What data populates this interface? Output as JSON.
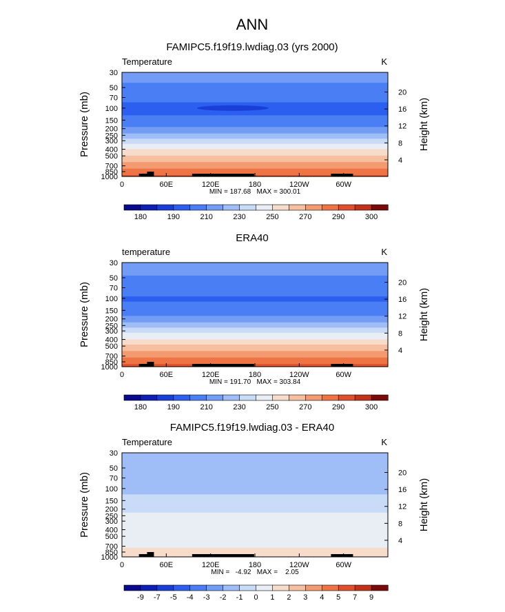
{
  "page_title": "ANN",
  "longitude_ticks": [
    "0",
    "60E",
    "120E",
    "180",
    "120W",
    "60W"
  ],
  "pressure_ticks": [
    "30",
    "50",
    "70",
    "100",
    "150",
    "200",
    "250",
    "300",
    "400",
    "500",
    "700",
    "850",
    "1000"
  ],
  "pressure_values": [
    30,
    50,
    70,
    100,
    150,
    200,
    250,
    300,
    400,
    500,
    700,
    850,
    1000
  ],
  "height_ticks": [
    "20",
    "16",
    "12",
    "8",
    "4"
  ],
  "height_values_km": [
    20,
    16,
    12,
    8,
    4
  ],
  "left_axis_label": "Pressure (mb)",
  "right_axis_label": "Height (km)",
  "terrain_color": "#000000",
  "chart_data": [
    {
      "type": "heatmap",
      "title": "FAMIPC5.f19f19.lwdiag.03 (yrs 2000)",
      "field_label": "Temperature",
      "units": "K",
      "stats": "MIN = 187.68   MAX = 300.01",
      "min": 187.68,
      "max": 300.01,
      "x_range": [
        0,
        360
      ],
      "y_range_mb": [
        30,
        1000
      ],
      "colorbar_levels": [
        180,
        185,
        190,
        200,
        210,
        220,
        230,
        240,
        250,
        260,
        270,
        280,
        290,
        295,
        300
      ],
      "colorbar_labels": [
        "180",
        "190",
        "210",
        "230",
        "250",
        "270",
        "290",
        "300"
      ],
      "colorbar_colors": [
        "#0a0a8c",
        "#0d1fb5",
        "#1a3fd9",
        "#2c5ff0",
        "#4a7ef5",
        "#739cf5",
        "#9fbdf6",
        "#c8dbf7",
        "#e8eef4",
        "#f7dccb",
        "#f6bfa0",
        "#f39a70",
        "#ee7445",
        "#e0502c",
        "#c23218",
        "#7a0a0a"
      ],
      "profile": [
        {
          "p": 30,
          "v": 214
        },
        {
          "p": 50,
          "v": 208
        },
        {
          "p": 70,
          "v": 203
        },
        {
          "p": 100,
          "v": 197
        },
        {
          "p": 150,
          "v": 202
        },
        {
          "p": 200,
          "v": 212
        },
        {
          "p": 250,
          "v": 224
        },
        {
          "p": 300,
          "v": 235
        },
        {
          "p": 400,
          "v": 250
        },
        {
          "p": 500,
          "v": 261
        },
        {
          "p": 700,
          "v": 276
        },
        {
          "p": 850,
          "v": 284
        },
        {
          "p": 1000,
          "v": 291
        }
      ],
      "cold_spot": {
        "lon": 150,
        "p": 100,
        "v": 188
      }
    },
    {
      "type": "heatmap",
      "title": "ERA40",
      "field_label": "temperature",
      "units": "K",
      "stats": "MIN = 191.70   MAX = 303.84",
      "min": 191.7,
      "max": 303.84,
      "x_range": [
        0,
        360
      ],
      "y_range_mb": [
        30,
        1000
      ],
      "colorbar_levels": [
        180,
        185,
        190,
        200,
        210,
        220,
        230,
        240,
        250,
        260,
        270,
        280,
        290,
        295,
        300
      ],
      "colorbar_labels": [
        "180",
        "190",
        "210",
        "230",
        "250",
        "270",
        "290",
        "300"
      ],
      "colorbar_colors": [
        "#0a0a8c",
        "#0d1fb5",
        "#1a3fd9",
        "#2c5ff0",
        "#4a7ef5",
        "#739cf5",
        "#9fbdf6",
        "#c8dbf7",
        "#e8eef4",
        "#f7dccb",
        "#f6bfa0",
        "#f39a70",
        "#ee7445",
        "#e0502c",
        "#c23218",
        "#7a0a0a"
      ],
      "profile": [
        {
          "p": 30,
          "v": 215
        },
        {
          "p": 50,
          "v": 209
        },
        {
          "p": 70,
          "v": 204
        },
        {
          "p": 100,
          "v": 199
        },
        {
          "p": 150,
          "v": 203
        },
        {
          "p": 200,
          "v": 213
        },
        {
          "p": 250,
          "v": 226
        },
        {
          "p": 300,
          "v": 236
        },
        {
          "p": 400,
          "v": 251
        },
        {
          "p": 500,
          "v": 262
        },
        {
          "p": 700,
          "v": 277
        },
        {
          "p": 850,
          "v": 286
        },
        {
          "p": 1000,
          "v": 293
        }
      ]
    },
    {
      "type": "heatmap",
      "title": "FAMIPC5.f19f19.lwdiag.03 - ERA40",
      "field_label": "Temperature",
      "units": "K",
      "stats": "MIN =   -4.92   MAX =    2.05",
      "min": -4.92,
      "max": 2.05,
      "x_range": [
        0,
        360
      ],
      "y_range_mb": [
        30,
        1000
      ],
      "colorbar_levels": [
        -9,
        -8,
        -7,
        -6,
        -5,
        -4,
        -3,
        -2,
        -1,
        0,
        1,
        2,
        3,
        4,
        5,
        6,
        7,
        8,
        9
      ],
      "colorbar_labels": [
        "-9",
        "-7",
        "-5",
        "-4",
        "-3",
        "-2",
        "-1",
        "0",
        "1",
        "2",
        "3",
        "4",
        "5",
        "7",
        "9"
      ],
      "colorbar_colors": [
        "#0a0a8c",
        "#0d1fb5",
        "#1a3fd9",
        "#2c5ff0",
        "#4a7ef5",
        "#739cf5",
        "#9fbdf6",
        "#c8dbf7",
        "#e8eef4",
        "#f7dccb",
        "#f6bfa0",
        "#f39a70",
        "#ee7445",
        "#e0502c",
        "#c23218",
        "#7a0a0a"
      ],
      "profile": [
        {
          "p": 30,
          "v": -3.6
        },
        {
          "p": 50,
          "v": -3.9
        },
        {
          "p": 70,
          "v": -3.5
        },
        {
          "p": 100,
          "v": -3.2
        },
        {
          "p": 150,
          "v": -2.8
        },
        {
          "p": 200,
          "v": -2.4
        },
        {
          "p": 250,
          "v": -1.6
        },
        {
          "p": 300,
          "v": -1.2
        },
        {
          "p": 400,
          "v": -1.5
        },
        {
          "p": 500,
          "v": -1.3
        },
        {
          "p": 700,
          "v": -1.1
        },
        {
          "p": 850,
          "v": -0.8
        },
        {
          "p": 1000,
          "v": -0.7
        }
      ]
    }
  ]
}
